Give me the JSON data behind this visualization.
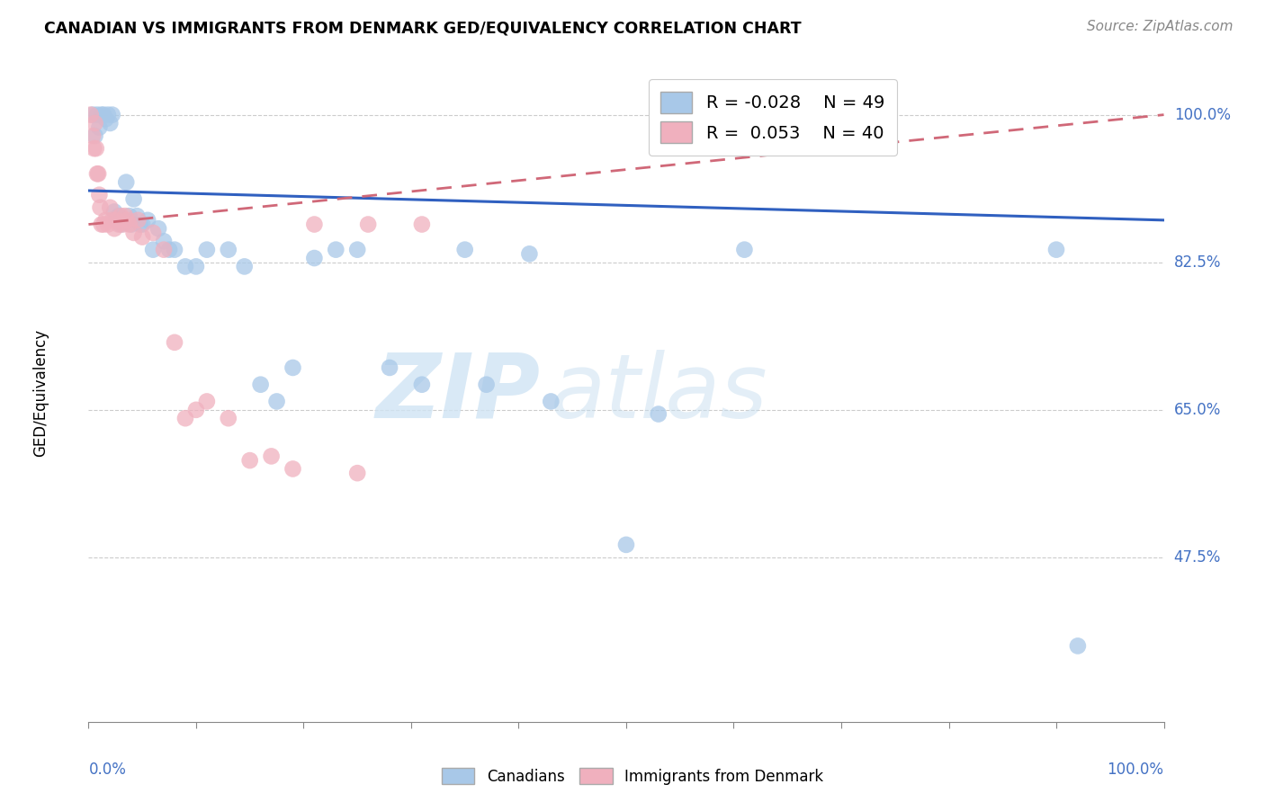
{
  "title": "CANADIAN VS IMMIGRANTS FROM DENMARK GED/EQUIVALENCY CORRELATION CHART",
  "source": "Source: ZipAtlas.com",
  "ylabel": "GED/Equivalency",
  "ytick_labels": [
    "100.0%",
    "82.5%",
    "65.0%",
    "47.5%"
  ],
  "ytick_values": [
    1.0,
    0.825,
    0.65,
    0.475
  ],
  "xlim": [
    0.0,
    1.0
  ],
  "ylim": [
    0.28,
    1.06
  ],
  "legend_r_canadian": "-0.028",
  "legend_n_canadian": "49",
  "legend_r_denmark": "0.053",
  "legend_n_denmark": "40",
  "canadian_color": "#a8c8e8",
  "denmark_color": "#f0b0be",
  "canadian_line_color": "#3060c0",
  "denmark_line_color": "#d06878",
  "watermark_zip": "ZIP",
  "watermark_atlas": "atlas",
  "canadians_x": [
    0.004,
    0.006,
    0.008,
    0.01,
    0.012,
    0.014,
    0.016,
    0.018,
    0.02,
    0.022,
    0.024,
    0.026,
    0.028,
    0.03,
    0.035,
    0.038,
    0.04,
    0.042,
    0.045,
    0.048,
    0.05,
    0.055,
    0.06,
    0.065,
    0.07,
    0.075,
    0.08,
    0.09,
    0.1,
    0.11,
    0.13,
    0.145,
    0.16,
    0.175,
    0.19,
    0.21,
    0.23,
    0.25,
    0.28,
    0.31,
    0.35,
    0.37,
    0.41,
    0.43,
    0.5,
    0.53,
    0.61,
    0.9,
    0.92
  ],
  "canadians_y": [
    1.0,
    0.975,
    1.0,
    0.985,
    1.0,
    1.0,
    0.995,
    1.0,
    0.99,
    1.0,
    0.885,
    0.875,
    0.88,
    0.87,
    0.92,
    0.88,
    0.87,
    0.9,
    0.88,
    0.87,
    0.87,
    0.875,
    0.84,
    0.865,
    0.85,
    0.84,
    0.84,
    0.82,
    0.82,
    0.84,
    0.84,
    0.82,
    0.68,
    0.66,
    0.7,
    0.83,
    0.84,
    0.84,
    0.7,
    0.68,
    0.84,
    0.68,
    0.835,
    0.66,
    0.49,
    0.645,
    0.84,
    0.84,
    0.37
  ],
  "denmark_x": [
    0.002,
    0.004,
    0.005,
    0.006,
    0.007,
    0.008,
    0.009,
    0.01,
    0.011,
    0.012,
    0.014,
    0.016,
    0.018,
    0.02,
    0.022,
    0.024,
    0.026,
    0.028,
    0.03,
    0.032,
    0.034,
    0.036,
    0.038,
    0.042,
    0.046,
    0.05,
    0.06,
    0.07,
    0.08,
    0.09,
    0.1,
    0.11,
    0.13,
    0.15,
    0.17,
    0.19,
    0.21,
    0.25,
    0.26,
    0.31
  ],
  "denmark_y": [
    1.0,
    0.975,
    0.96,
    0.99,
    0.96,
    0.93,
    0.93,
    0.905,
    0.89,
    0.87,
    0.87,
    0.875,
    0.87,
    0.89,
    0.875,
    0.865,
    0.875,
    0.87,
    0.88,
    0.87,
    0.88,
    0.875,
    0.87,
    0.86,
    0.875,
    0.855,
    0.86,
    0.84,
    0.73,
    0.64,
    0.65,
    0.66,
    0.64,
    0.59,
    0.595,
    0.58,
    0.87,
    0.575,
    0.87,
    0.87
  ],
  "can_line_x0": 0.0,
  "can_line_x1": 1.0,
  "can_line_y0": 0.91,
  "can_line_y1": 0.875,
  "den_line_x0": 0.0,
  "den_line_x1": 1.0,
  "den_line_y0": 0.87,
  "den_line_y1": 1.0
}
